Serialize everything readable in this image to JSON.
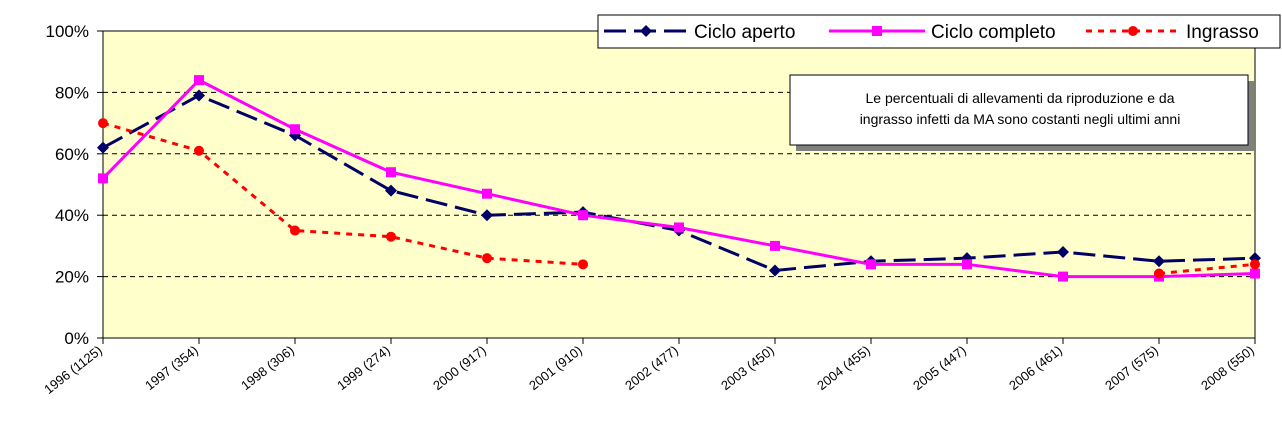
{
  "chart_data": {
    "type": "line",
    "categories": [
      "1996 (1125)",
      "1997 (354)",
      "1998 (306)",
      "1999 (274)",
      "2000 (917)",
      "2001 (910)",
      "2002 (477)",
      "2003 (450)",
      "2004 (455)",
      "2005 (447)",
      "2006 (461)",
      "2007 (575)",
      "2008 (550)"
    ],
    "series": [
      {
        "name": "Ciclo aperto",
        "color": "#000066",
        "dash": "22,8",
        "marker": "diamond",
        "values": [
          62,
          79,
          66,
          48,
          40,
          41,
          35,
          22,
          25,
          26,
          28,
          25,
          26
        ]
      },
      {
        "name": "Ciclo completo",
        "color": "#ff00ff",
        "dash": "none",
        "marker": "square",
        "values": [
          52,
          84,
          68,
          54,
          47,
          40,
          36,
          30,
          24,
          24,
          20,
          20,
          21
        ]
      },
      {
        "name": "Ingrasso",
        "color": "#ff0000",
        "dash": "6,6",
        "marker": "circle",
        "values": [
          70,
          61,
          35,
          33,
          26,
          24,
          null,
          null,
          null,
          null,
          null,
          21,
          24
        ]
      }
    ],
    "ylim": [
      0,
      100
    ],
    "yticks": [
      {
        "value": 0,
        "label": "0%"
      },
      {
        "value": 20,
        "label": "20%"
      },
      {
        "value": 40,
        "label": "40%"
      },
      {
        "value": 60,
        "label": "60%"
      },
      {
        "value": 80,
        "label": "80%"
      },
      {
        "value": 100,
        "label": "100%"
      }
    ],
    "grid": true,
    "plot_background": "#ffffcc",
    "legend": "top-right",
    "annotation": [
      "Le percentuali di allevamenti da riproduzione e da",
      "ingrasso infetti da MA sono costanti negli ultimi anni"
    ]
  }
}
